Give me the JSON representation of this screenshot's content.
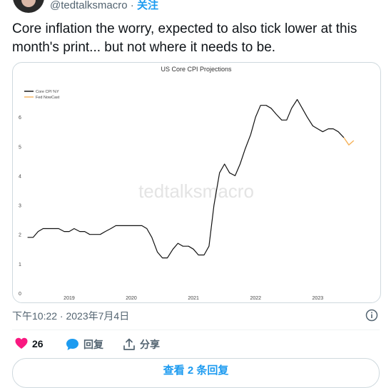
{
  "author": {
    "handle": "@tedtalksmacro",
    "separator": "·",
    "follow_label": "关注"
  },
  "tweet": {
    "text": "Core inflation the worry, expected to also tick lower at this month's print... but not where it needs to be.",
    "timestamp": "下午10:22 · 2023年7月4日"
  },
  "watermark": "tedtalksmacro",
  "chart_data": {
    "type": "line",
    "title": "US Core CPI Projections",
    "xlabel": "",
    "ylabel": "",
    "ylim": [
      0,
      7
    ],
    "yticks": [
      0,
      1,
      2,
      3,
      4,
      5,
      6
    ],
    "xlim": [
      2018.3,
      2023.8
    ],
    "xticks": [
      {
        "value": 2019,
        "label": "2019"
      },
      {
        "value": 2020,
        "label": "2020"
      },
      {
        "value": 2021,
        "label": "2021"
      },
      {
        "value": 2022,
        "label": "2022"
      },
      {
        "value": 2023,
        "label": "2023"
      }
    ],
    "legend": "top-left",
    "grid": false,
    "series": [
      {
        "name": "Core CPI %Y",
        "color": "#111111",
        "x": [
          2018.33,
          2018.42,
          2018.5,
          2018.58,
          2018.67,
          2018.75,
          2018.83,
          2018.92,
          2019.0,
          2019.08,
          2019.17,
          2019.25,
          2019.33,
          2019.42,
          2019.5,
          2019.58,
          2019.67,
          2019.75,
          2019.83,
          2019.92,
          2020.0,
          2020.08,
          2020.17,
          2020.25,
          2020.33,
          2020.42,
          2020.5,
          2020.58,
          2020.67,
          2020.75,
          2020.83,
          2020.92,
          2021.0,
          2021.08,
          2021.17,
          2021.25,
          2021.33,
          2021.42,
          2021.5,
          2021.58,
          2021.67,
          2021.75,
          2021.83,
          2021.92,
          2022.0,
          2022.08,
          2022.17,
          2022.25,
          2022.33,
          2022.42,
          2022.5,
          2022.58,
          2022.67,
          2022.75,
          2022.83,
          2022.92,
          2023.0,
          2023.08,
          2023.17,
          2023.25,
          2023.33,
          2023.42
        ],
        "y": [
          1.9,
          1.9,
          2.1,
          2.2,
          2.2,
          2.2,
          2.2,
          2.1,
          2.1,
          2.2,
          2.1,
          2.1,
          2.0,
          2.0,
          2.0,
          2.1,
          2.2,
          2.3,
          2.3,
          2.3,
          2.3,
          2.3,
          2.3,
          2.2,
          1.9,
          1.4,
          1.2,
          1.2,
          1.5,
          1.7,
          1.6,
          1.6,
          1.5,
          1.3,
          1.3,
          1.6,
          3.0,
          4.1,
          4.4,
          4.1,
          4.0,
          4.4,
          4.9,
          5.4,
          6.0,
          6.4,
          6.4,
          6.3,
          6.1,
          5.9,
          5.9,
          6.3,
          6.6,
          6.3,
          6.0,
          5.7,
          5.6,
          5.5,
          5.6,
          5.6,
          5.5,
          5.3
        ]
      },
      {
        "name": "Fed NowCast",
        "color": "#f5b25a",
        "x": [
          2023.42,
          2023.5,
          2023.58
        ],
        "y": [
          5.3,
          5.05,
          5.2
        ]
      }
    ]
  },
  "actions": {
    "likes": "26",
    "reply_label": "回复",
    "share_label": "分享"
  },
  "more_replies_label": "查看 2 条回复",
  "colors": {
    "accent": "#1d9bf0",
    "like": "#f91880",
    "muted": "#536471"
  }
}
